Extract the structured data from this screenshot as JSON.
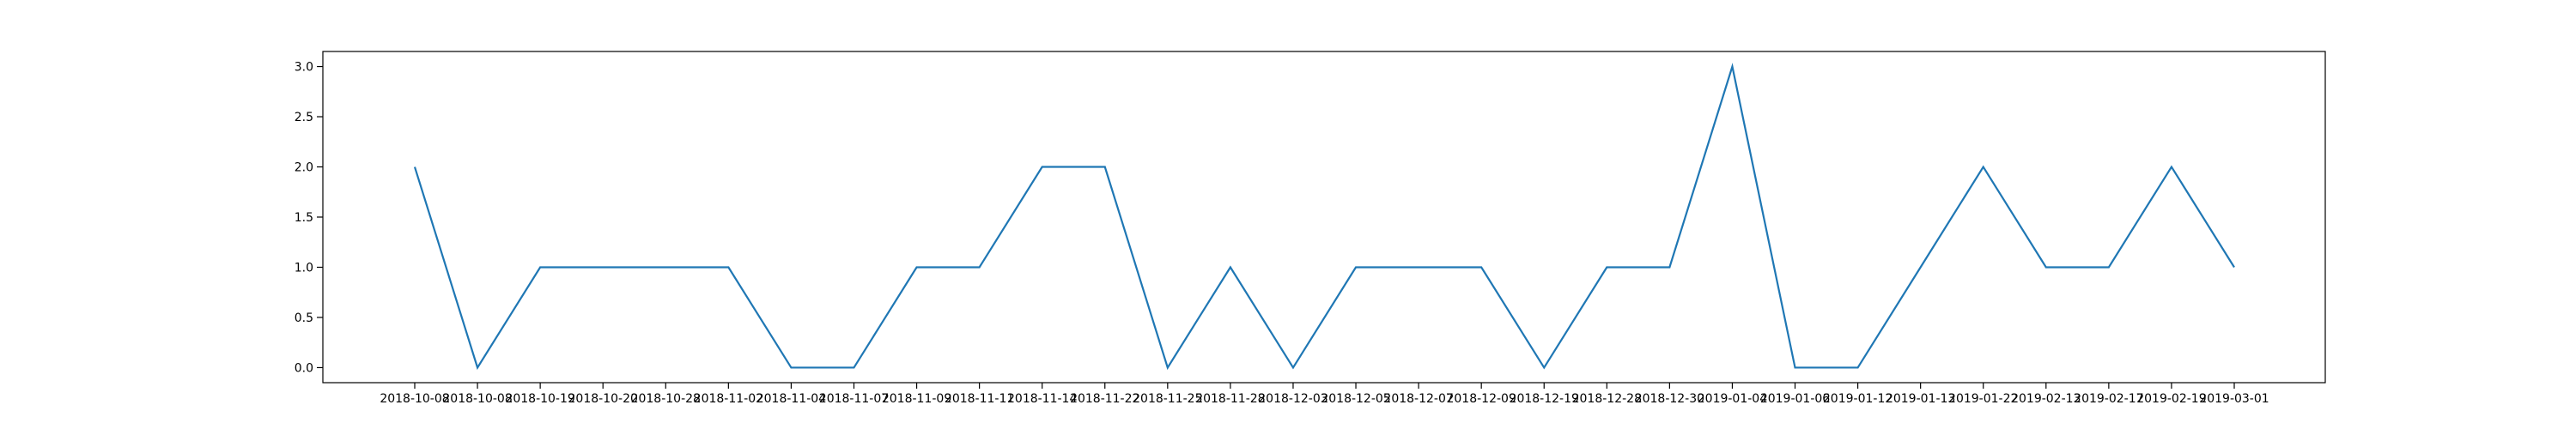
{
  "chart_data": {
    "type": "line",
    "categories": [
      "2018-10-08",
      "2018-10-08",
      "2018-10-19",
      "2018-10-20",
      "2018-10-28",
      "2018-11-02",
      "2018-11-04",
      "2018-11-07",
      "2018-11-09",
      "2018-11-11",
      "2018-11-14",
      "2018-11-22",
      "2018-11-25",
      "2018-11-28",
      "2018-12-03",
      "2018-12-05",
      "2018-12-07",
      "2018-12-09",
      "2018-12-19",
      "2018-12-28",
      "2018-12-30",
      "2019-01-04",
      "2019-01-06",
      "2019-01-12",
      "2019-01-13",
      "2019-01-22",
      "2019-02-13",
      "2019-02-17",
      "2019-02-19",
      "2019-03-01"
    ],
    "series": [
      {
        "values": [
          2,
          0,
          1,
          1,
          1,
          1,
          0,
          0,
          1,
          1,
          2,
          2,
          0,
          1,
          0,
          1,
          1,
          1,
          0,
          1,
          1,
          3,
          0,
          0,
          1,
          2,
          1,
          1,
          2,
          1
        ],
        "color": "#1f77b4"
      }
    ],
    "ylim": [
      -0.15,
      3.15
    ],
    "yticks": [
      0.0,
      0.5,
      1.0,
      1.5,
      2.0,
      2.5,
      3.0
    ],
    "ytick_labels": [
      "0.0",
      "0.5",
      "1.0",
      "1.5",
      "2.0",
      "2.5",
      "3.0"
    ],
    "title": "",
    "xlabel": "",
    "ylabel": "",
    "grid": false,
    "legend": false
  }
}
